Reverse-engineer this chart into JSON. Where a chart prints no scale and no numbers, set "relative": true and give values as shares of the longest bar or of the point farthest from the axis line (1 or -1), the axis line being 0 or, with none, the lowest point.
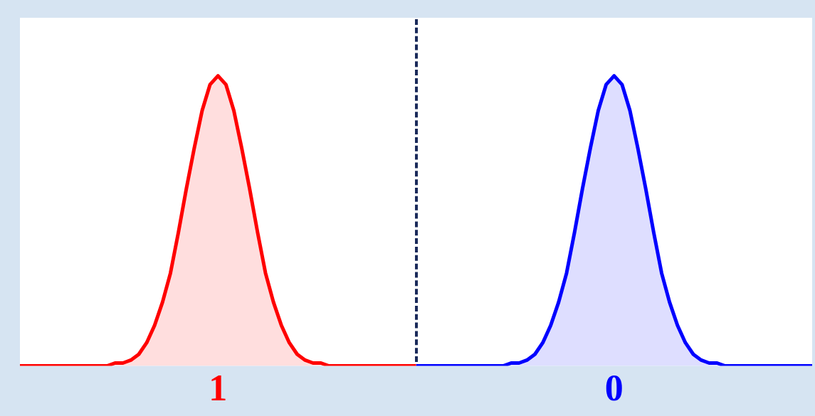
{
  "chart_data": {
    "type": "area",
    "relative": true,
    "legend": false,
    "grid": false,
    "marker": "none",
    "tick_labels": "x",
    "categories": [
      null,
      null,
      null,
      null,
      null,
      null,
      null,
      null,
      null,
      null,
      null,
      null,
      null,
      null,
      null,
      null,
      null,
      null,
      null,
      null,
      null,
      null,
      null,
      null,
      null,
      "1",
      null,
      null,
      null,
      null,
      null,
      null,
      null,
      null,
      null,
      null,
      null,
      null,
      null,
      null,
      null,
      null,
      null,
      null,
      null,
      null,
      null,
      null,
      null,
      null,
      null,
      null,
      null,
      null,
      null,
      null,
      null,
      null,
      null,
      null,
      null,
      null,
      null,
      null,
      null,
      null,
      null,
      null,
      null,
      null,
      null,
      null,
      null,
      null,
      null,
      "0",
      null,
      null,
      null,
      null,
      null,
      null,
      null,
      null,
      null,
      null,
      null,
      null,
      null,
      null,
      null,
      null,
      null,
      null,
      null,
      null,
      null,
      null,
      null,
      null,
      null
    ],
    "series": [
      {
        "color": "#ff0000",
        "values": [
          0,
          0,
          0,
          0,
          0,
          0,
          0,
          0,
          0,
          0,
          0,
          0,
          0.01,
          0.01,
          0.02,
          0.04,
          0.08,
          0.14,
          0.22,
          0.32,
          0.46,
          0.61,
          0.75,
          0.88,
          0.97,
          1,
          0.97,
          0.88,
          0.75,
          0.61,
          0.46,
          0.32,
          0.22,
          0.14,
          0.08,
          0.04,
          0.02,
          0.01,
          0.01,
          0,
          0,
          0,
          0,
          0,
          0,
          0,
          0,
          0,
          0,
          0,
          0,
          null,
          null,
          null,
          null,
          null,
          null,
          null,
          null,
          null,
          null,
          null,
          null,
          null,
          null,
          null,
          null,
          null,
          null,
          null,
          null,
          null,
          null,
          null,
          null,
          null,
          null,
          null,
          null,
          null,
          null,
          null,
          null,
          null,
          null,
          null,
          null,
          null,
          null,
          null,
          null,
          null,
          null,
          null,
          null,
          null,
          null,
          null,
          null,
          null,
          null
        ]
      },
      {
        "color": "#0000ff",
        "values": [
          null,
          null,
          null,
          null,
          null,
          null,
          null,
          null,
          null,
          null,
          null,
          null,
          null,
          null,
          null,
          null,
          null,
          null,
          null,
          null,
          null,
          null,
          null,
          null,
          null,
          null,
          null,
          null,
          null,
          null,
          null,
          null,
          null,
          null,
          null,
          null,
          null,
          null,
          null,
          null,
          null,
          null,
          null,
          null,
          null,
          null,
          null,
          null,
          null,
          null,
          0,
          0,
          0,
          0,
          0,
          0,
          0,
          0,
          0,
          0,
          0,
          0,
          0.01,
          0.01,
          0.02,
          0.04,
          0.08,
          0.14,
          0.22,
          0.32,
          0.46,
          0.61,
          0.75,
          0.88,
          0.97,
          1,
          0.97,
          0.88,
          0.75,
          0.61,
          0.46,
          0.32,
          0.22,
          0.14,
          0.08,
          0.04,
          0.02,
          0.01,
          0.01,
          0,
          0,
          0,
          0,
          0,
          0,
          0,
          0,
          0,
          0,
          0,
          0
        ]
      }
    ]
  }
}
